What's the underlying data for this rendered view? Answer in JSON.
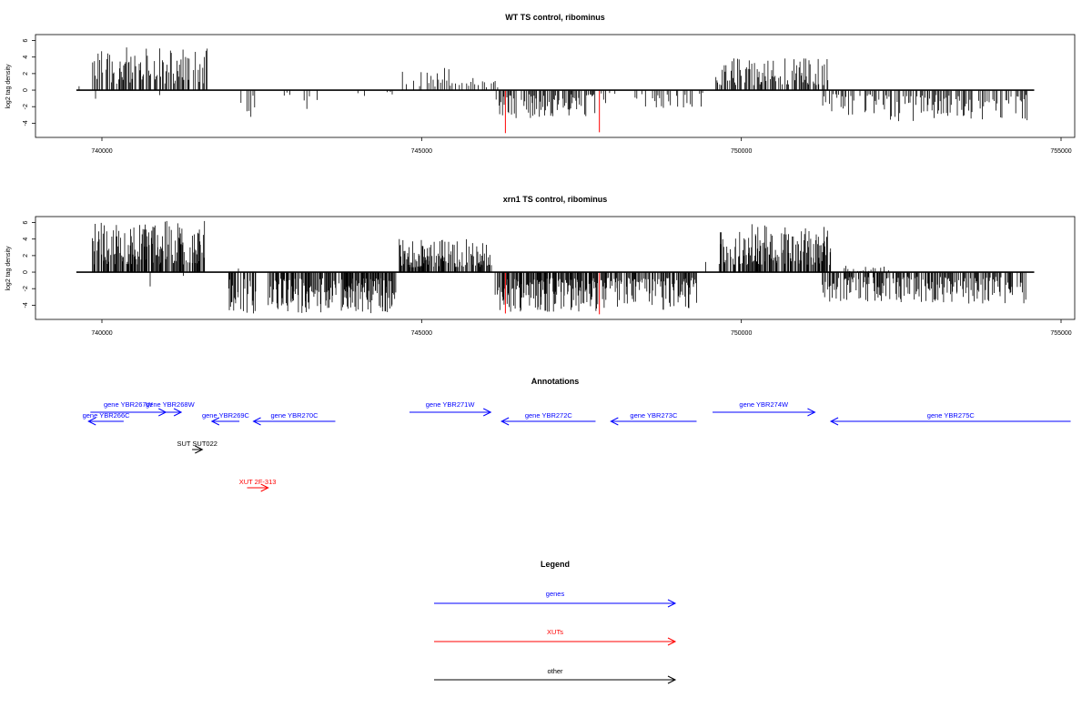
{
  "chart_data": [
    {
      "type": "bar",
      "title": "WT TS control, ribominus",
      "ylabel": "log2 tag density",
      "xlim": [
        739600,
        755000
      ],
      "ylim": [
        -5.5,
        6.5
      ],
      "yticks": [
        -4,
        -2,
        0,
        2,
        4,
        6
      ],
      "xticks": [
        740000,
        745000,
        750000,
        755000
      ],
      "grid": false,
      "highlight_color": "#ff0000",
      "bar_color": "#000000",
      "highlights": [
        {
          "x": 746310,
          "y": -5.2
        },
        {
          "x": 747780,
          "y": -5.1
        }
      ],
      "series": [
        {
          "range": [
            739630,
            739650
          ],
          "amp": 1.5,
          "sign": 1,
          "density": 40
        },
        {
          "range": [
            739850,
            741650
          ],
          "amp": 5.2,
          "sign": 1,
          "density": 14
        },
        {
          "range": [
            739890,
            739910
          ],
          "amp": 1.6,
          "sign": -1,
          "density": 40
        },
        {
          "range": [
            740890,
            740910
          ],
          "amp": 0.9,
          "sign": -1,
          "density": 40
        },
        {
          "range": [
            742050,
            742400
          ],
          "amp": 3.3,
          "sign": -1,
          "density": 30
        },
        {
          "range": [
            742850,
            743000
          ],
          "amp": 1.5,
          "sign": -1,
          "density": 40
        },
        {
          "range": [
            743150,
            743350
          ],
          "amp": 3.0,
          "sign": -1,
          "density": 40
        },
        {
          "range": [
            744000,
            744600
          ],
          "amp": 1.3,
          "sign": -1,
          "density": 45
        },
        {
          "range": [
            744660,
            745650
          ],
          "amp": 2.8,
          "sign": 1,
          "density": 30
        },
        {
          "range": [
            745700,
            746200
          ],
          "amp": 2.2,
          "sign": 1,
          "density": 30
        },
        {
          "range": [
            746150,
            747750
          ],
          "amp": 3.4,
          "sign": -1,
          "density": 14
        },
        {
          "range": [
            747800,
            748050
          ],
          "amp": 1.8,
          "sign": -1,
          "density": 35
        },
        {
          "range": [
            748200,
            748260
          ],
          "amp": 2.0,
          "sign": 1,
          "density": 40
        },
        {
          "range": [
            748300,
            749500
          ],
          "amp": 2.2,
          "sign": -1,
          "density": 28
        },
        {
          "range": [
            749600,
            751350
          ],
          "amp": 4.0,
          "sign": 1,
          "density": 14
        },
        {
          "range": [
            751250,
            752150
          ],
          "amp": 3.3,
          "sign": -1,
          "density": 20
        },
        {
          "range": [
            752200,
            754500
          ],
          "amp": 3.9,
          "sign": -1,
          "density": 18
        },
        {
          "range": [
            752200,
            752240
          ],
          "amp": 1.2,
          "sign": 1,
          "density": 40
        },
        {
          "range": [
            753590,
            753620
          ],
          "amp": 2.0,
          "sign": 1,
          "density": 40
        }
      ]
    },
    {
      "type": "bar",
      "title": "xrn1 TS control, ribominus",
      "ylabel": "log2 tag density",
      "xlim": [
        739600,
        755000
      ],
      "ylim": [
        -5.5,
        6.5
      ],
      "yticks": [
        -4,
        -2,
        0,
        2,
        4,
        6
      ],
      "xticks": [
        740000,
        745000,
        750000,
        755000
      ],
      "grid": false,
      "highlight_color": "#ff0000",
      "bar_color": "#000000",
      "highlights": [
        {
          "x": 746310,
          "y": -5.0
        },
        {
          "x": 747780,
          "y": -5.1
        }
      ],
      "series": [
        {
          "range": [
            739630,
            739660
          ],
          "amp": 3.2,
          "sign": 1,
          "density": 40
        },
        {
          "range": [
            739850,
            741620
          ],
          "amp": 6.2,
          "sign": 1,
          "density": 8
        },
        {
          "range": [
            740750,
            740790
          ],
          "amp": 3.0,
          "sign": -1,
          "density": 40
        },
        {
          "range": [
            741260,
            741300
          ],
          "amp": 1.2,
          "sign": -1,
          "density": 40
        },
        {
          "range": [
            741980,
            742400
          ],
          "amp": 5.0,
          "sign": -1,
          "density": 10
        },
        {
          "range": [
            742080,
            742120
          ],
          "amp": 2.3,
          "sign": 1,
          "density": 40
        },
        {
          "range": [
            742600,
            744600
          ],
          "amp": 5.0,
          "sign": -1,
          "density": 8
        },
        {
          "range": [
            744650,
            746100
          ],
          "amp": 4.0,
          "sign": 1,
          "density": 8
        },
        {
          "range": [
            746150,
            747750
          ],
          "amp": 4.8,
          "sign": -1,
          "density": 8
        },
        {
          "range": [
            747800,
            749300
          ],
          "amp": 4.6,
          "sign": -1,
          "density": 9
        },
        {
          "range": [
            749350,
            749450
          ],
          "amp": 2.8,
          "sign": 1,
          "density": 30
        },
        {
          "range": [
            749650,
            751400
          ],
          "amp": 5.8,
          "sign": 1,
          "density": 8
        },
        {
          "range": [
            751250,
            754450
          ],
          "amp": 3.8,
          "sign": -1,
          "density": 12
        },
        {
          "range": [
            751600,
            752300
          ],
          "amp": 0.8,
          "sign": 1,
          "density": 30
        }
      ]
    }
  ],
  "annotations": {
    "title": "Annotations",
    "genes_color": "#0000ff",
    "xuts_color": "#ff0000",
    "other_color": "#000000",
    "features": [
      {
        "label": "gene YBR266C",
        "start": 739790,
        "end": 740340,
        "strand": "-",
        "row": 1,
        "category": "genes"
      },
      {
        "label": "gene YBR267W",
        "start": 739820,
        "end": 741000,
        "strand": "+",
        "row": 0,
        "category": "genes"
      },
      {
        "label": "gene YBR268W",
        "start": 740890,
        "end": 741240,
        "strand": "+",
        "row": 0,
        "category": "genes"
      },
      {
        "label": "gene YBR269C",
        "start": 741720,
        "end": 742150,
        "strand": "-",
        "row": 1,
        "category": "genes"
      },
      {
        "label": "gene YBR270C",
        "start": 742370,
        "end": 743650,
        "strand": "-",
        "row": 1,
        "category": "genes"
      },
      {
        "label": "gene YBR271W",
        "start": 744810,
        "end": 746080,
        "strand": "+",
        "row": 0,
        "category": "genes"
      },
      {
        "label": "gene YBR272C",
        "start": 746250,
        "end": 747720,
        "strand": "-",
        "row": 1,
        "category": "genes"
      },
      {
        "label": "gene YBR273C",
        "start": 747960,
        "end": 749300,
        "strand": "-",
        "row": 1,
        "category": "genes"
      },
      {
        "label": "gene YBR274W",
        "start": 749550,
        "end": 751150,
        "strand": "+",
        "row": 0,
        "category": "genes"
      },
      {
        "label": "gene YBR275C",
        "start": 751400,
        "end": 755150,
        "strand": "-",
        "row": 1,
        "category": "genes"
      },
      {
        "label": "SUT SUT022",
        "start": 741410,
        "end": 741570,
        "strand": "+",
        "row": 2,
        "category": "other"
      },
      {
        "label": "XUT 2F-313",
        "start": 742270,
        "end": 742600,
        "strand": "+",
        "row": 3,
        "category": "xuts"
      }
    ]
  },
  "legend": {
    "title": "Legend",
    "items": [
      {
        "label": "genes",
        "color": "#0000ff"
      },
      {
        "label": "XUTs",
        "color": "#ff0000"
      },
      {
        "label": "other",
        "color": "#000000"
      }
    ]
  }
}
